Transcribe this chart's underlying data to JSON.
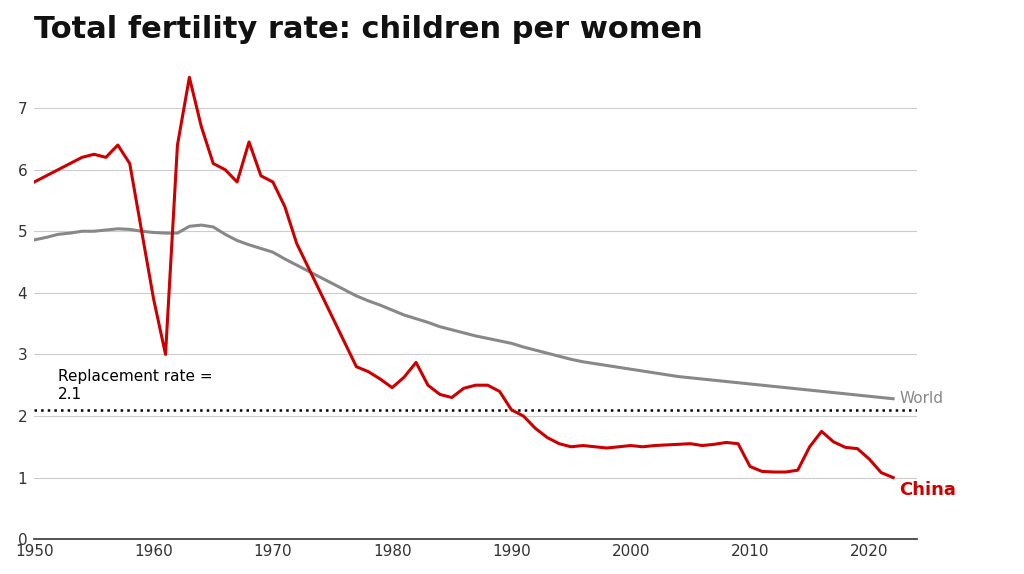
{
  "title": "Total fertility rate: children per women",
  "title_fontsize": 22,
  "background_color": "#ffffff",
  "china_color": "#cc0000",
  "world_color": "#888888",
  "replacement_rate": 2.1,
  "replacement_label": "Replacement rate =\n2.1",
  "world_label": "World",
  "china_label": "China",
  "ylim": [
    0,
    7.8
  ],
  "yticks": [
    0,
    1,
    2,
    3,
    4,
    5,
    6,
    7
  ],
  "xlim": [
    1950,
    2024
  ],
  "xticks": [
    1950,
    1960,
    1970,
    1980,
    1990,
    2000,
    2010,
    2020
  ],
  "china_years": [
    1950,
    1951,
    1952,
    1953,
    1954,
    1955,
    1956,
    1957,
    1958,
    1959,
    1960,
    1961,
    1962,
    1963,
    1964,
    1965,
    1966,
    1967,
    1968,
    1969,
    1970,
    1971,
    1972,
    1973,
    1974,
    1975,
    1976,
    1977,
    1978,
    1979,
    1980,
    1981,
    1982,
    1983,
    1984,
    1985,
    1986,
    1987,
    1988,
    1989,
    1990,
    1991,
    1992,
    1993,
    1994,
    1995,
    1996,
    1997,
    1998,
    1999,
    2000,
    2001,
    2002,
    2003,
    2004,
    2005,
    2006,
    2007,
    2008,
    2009,
    2010,
    2011,
    2012,
    2013,
    2014,
    2015,
    2016,
    2017,
    2018,
    2019,
    2020,
    2021,
    2022
  ],
  "china_values": [
    5.8,
    5.9,
    6.0,
    6.1,
    6.2,
    6.25,
    6.2,
    6.4,
    6.1,
    5.0,
    3.9,
    3.0,
    6.4,
    7.5,
    6.7,
    6.1,
    6.0,
    5.8,
    6.45,
    5.9,
    5.8,
    5.4,
    4.8,
    4.4,
    4.0,
    3.6,
    3.2,
    2.8,
    2.72,
    2.6,
    2.46,
    2.63,
    2.87,
    2.5,
    2.35,
    2.3,
    2.45,
    2.5,
    2.5,
    2.4,
    2.1,
    2.0,
    1.8,
    1.65,
    1.55,
    1.5,
    1.52,
    1.5,
    1.48,
    1.5,
    1.52,
    1.5,
    1.52,
    1.53,
    1.54,
    1.55,
    1.52,
    1.54,
    1.57,
    1.55,
    1.18,
    1.1,
    1.09,
    1.09,
    1.12,
    1.5,
    1.75,
    1.58,
    1.49,
    1.47,
    1.3,
    1.08,
    1.0
  ],
  "world_years": [
    1950,
    1951,
    1952,
    1953,
    1954,
    1955,
    1956,
    1957,
    1958,
    1959,
    1960,
    1961,
    1962,
    1963,
    1964,
    1965,
    1966,
    1967,
    1968,
    1969,
    1970,
    1971,
    1972,
    1973,
    1974,
    1975,
    1976,
    1977,
    1978,
    1979,
    1980,
    1981,
    1982,
    1983,
    1984,
    1985,
    1986,
    1987,
    1988,
    1989,
    1990,
    1991,
    1992,
    1993,
    1994,
    1995,
    1996,
    1997,
    1998,
    1999,
    2000,
    2001,
    2002,
    2003,
    2004,
    2005,
    2006,
    2007,
    2008,
    2009,
    2010,
    2011,
    2012,
    2013,
    2014,
    2015,
    2016,
    2017,
    2018,
    2019,
    2020,
    2021,
    2022
  ],
  "world_values": [
    4.86,
    4.9,
    4.95,
    4.97,
    5.0,
    5.0,
    5.02,
    5.04,
    5.03,
    5.0,
    4.98,
    4.97,
    4.97,
    5.08,
    5.1,
    5.07,
    4.95,
    4.85,
    4.78,
    4.72,
    4.66,
    4.55,
    4.45,
    4.35,
    4.25,
    4.15,
    4.05,
    3.95,
    3.87,
    3.8,
    3.72,
    3.64,
    3.58,
    3.52,
    3.45,
    3.4,
    3.35,
    3.3,
    3.26,
    3.22,
    3.18,
    3.12,
    3.07,
    3.02,
    2.97,
    2.92,
    2.88,
    2.85,
    2.82,
    2.79,
    2.76,
    2.73,
    2.7,
    2.67,
    2.64,
    2.62,
    2.6,
    2.58,
    2.56,
    2.54,
    2.52,
    2.5,
    2.48,
    2.46,
    2.44,
    2.42,
    2.4,
    2.38,
    2.36,
    2.34,
    2.32,
    2.3,
    2.28
  ]
}
